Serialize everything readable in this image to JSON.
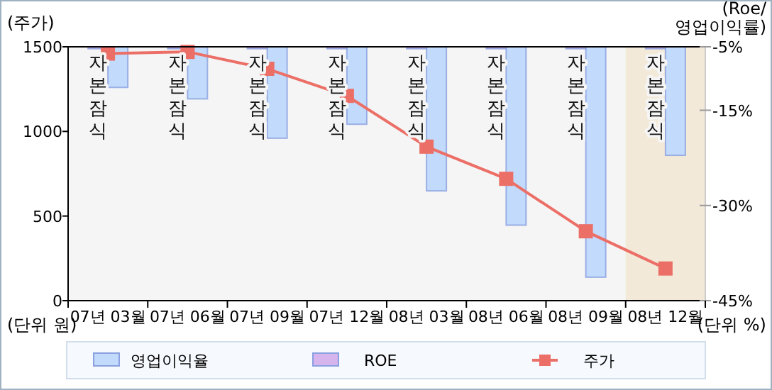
{
  "chart_data": {
    "type": "bar",
    "ylabel": "(주가)",
    "y2label": "(Roe/\n영업이익률)",
    "categories": [
      "07년 03월",
      "07년 06월",
      "07년 09월",
      "07년 12월",
      "08년 03월",
      "08년 06월",
      "08년 09월",
      "08년 12월"
    ],
    "series": [
      {
        "name": "영업이익율",
        "color": "#c2dbfc",
        "axis": "y2",
        "values": [
          -11.4,
          -13.2,
          -19.4,
          -17.2,
          -27.7,
          -33.1,
          -41.3,
          -22.1
        ]
      },
      {
        "name": "ROE",
        "color": "#d6b4ee",
        "axis": "y2",
        "values": [
          -5.3,
          -5.3,
          -5.3,
          -5.3,
          -5.3,
          -5.3,
          -5.3,
          -5.3
        ],
        "value_labels": [
          "자본잠식",
          "자본잠식",
          "자본잠식",
          "자본잠식",
          "자본잠식",
          "자본잠식",
          "자본잠식",
          "자본잠식"
        ]
      },
      {
        "name": "주가",
        "type": "line",
        "color": "#ec6f67",
        "marker": "square",
        "values": [
          1460,
          1470,
          1370,
          1210,
          910,
          720,
          410,
          190
        ]
      }
    ],
    "ylim": [
      0,
      1500
    ],
    "yticks": [
      0,
      500,
      1000,
      1500
    ],
    "y2lim": [
      -45,
      -5
    ],
    "y2ticks": [
      {
        "value": -45,
        "label": "-45%"
      },
      {
        "value": -30,
        "label": "-30%"
      },
      {
        "value": -15,
        "label": "-15%"
      },
      {
        "value": -5,
        "label": "-5%"
      }
    ],
    "bands": [
      {
        "axis": "x",
        "from": "08년 12월",
        "to": "08년 12월",
        "color": "#f3e9d9"
      }
    ],
    "annotations": [
      "(단위 원)",
      "(단위 %)"
    ],
    "legend": "bottom",
    "grid": false
  }
}
